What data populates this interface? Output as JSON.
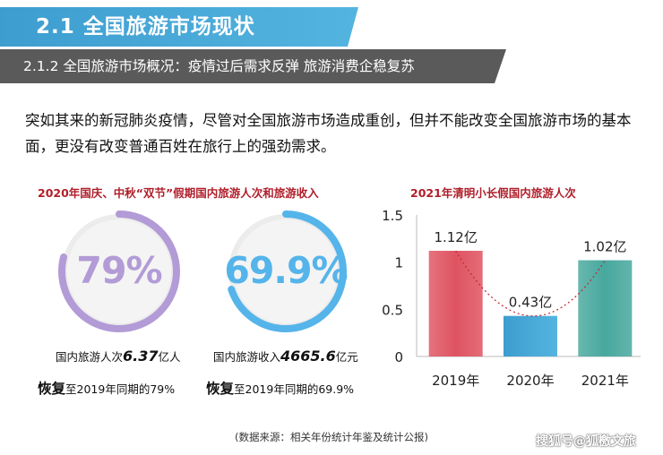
{
  "header": {
    "title": "2.1 全国旅游市场现状",
    "subtitle": "2.1.2 全国旅游市场概况：疫情过后需求反弹 旅游消费企稳复苏"
  },
  "intro": "突如其来的新冠肺炎疫情，尽管对全国旅游市场造成重创，但并不能改变全国旅游市场的基本面，更没有改变普通百姓在旅行上的强劲需求。",
  "left_panel": {
    "title": "2020年国庆、中秋“双节”假期国内旅游人次和旅游收入",
    "ring1": {
      "percent_label": "79%",
      "fraction": 0.79,
      "color": "#b29bd6",
      "stat_prefix": "国内旅游人次",
      "stat_value": "6.37",
      "stat_suffix": "亿人",
      "recover_bold": "恢复",
      "recover_text": "至2019年同期的79%"
    },
    "ring2": {
      "percent_label": "69.9%",
      "fraction": 0.699,
      "color": "#55b4ea",
      "stat_prefix": "国内旅游收入",
      "stat_value": "4665.6",
      "stat_suffix": "亿元",
      "recover_bold": "恢复",
      "recover_text": "至2019年同期的69.9%"
    }
  },
  "chart_data": {
    "type": "bar",
    "title": "2021年清明小长假国内旅游人次",
    "categories": [
      "2019年",
      "2020年",
      "2021年"
    ],
    "values": [
      1.12,
      0.43,
      1.02
    ],
    "data_labels": [
      "1.12亿",
      "0.43亿",
      "1.02亿"
    ],
    "colors": [
      "#df5361",
      "#3e3e42",
      "#47a89e"
    ],
    "ylim": [
      0,
      1.5
    ],
    "yticks": [
      "0",
      "0.5",
      "1",
      "1.5"
    ],
    "ytick_values": [
      0,
      0.5,
      1,
      1.5
    ],
    "grid": false,
    "trend_line": "dotted red curve"
  },
  "source_note": "(数据来源：相关年份统计年鉴及统计公报)",
  "watermark": "搜狐号@狐檄文旅"
}
